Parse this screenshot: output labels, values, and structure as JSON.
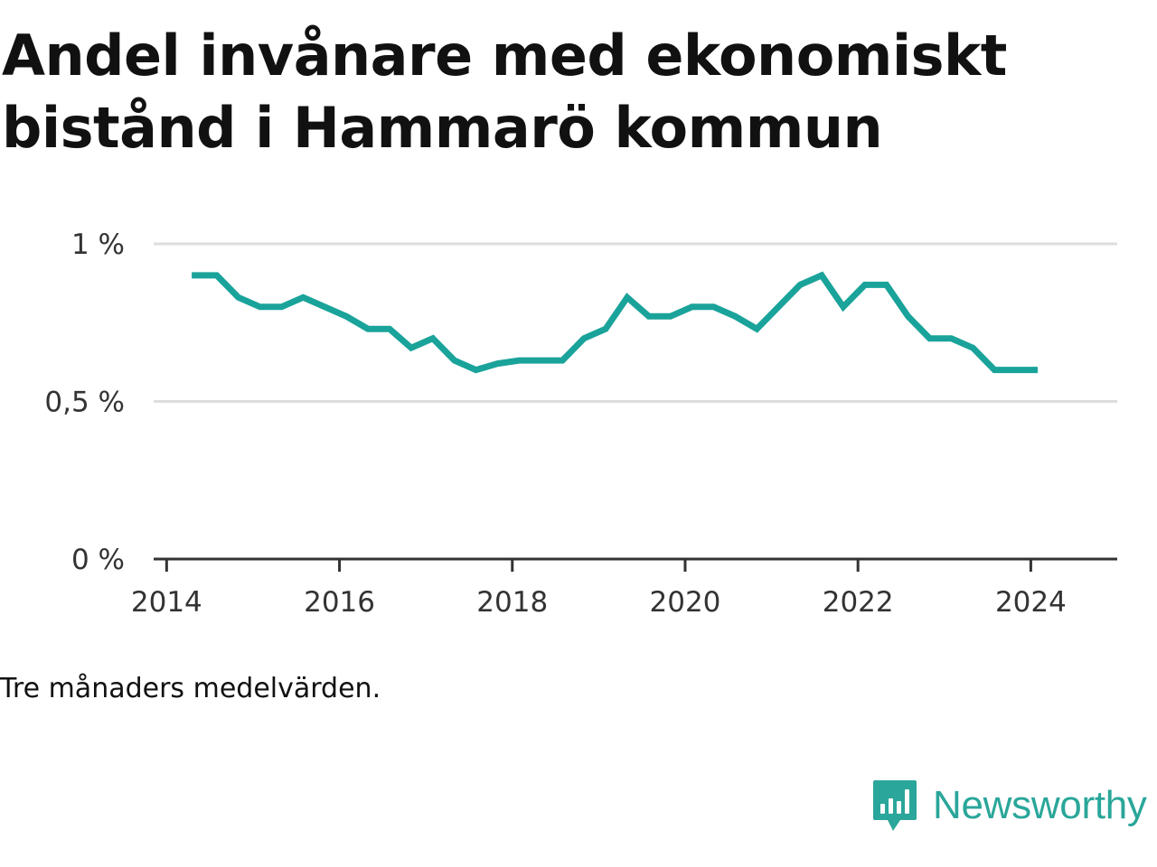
{
  "chart_data": {
    "type": "line",
    "title": "Andel invånare med ekonomiskt bistånd i Hammarö kommun",
    "xlabel": "",
    "ylabel": "",
    "note": "Tre månaders medelvärden.",
    "ylim": [
      0,
      1
    ],
    "xlim": [
      2013.85,
      2025.0
    ],
    "yticks": [
      {
        "value": 0,
        "label": "0 %"
      },
      {
        "value": 0.5,
        "label": "0,5 %"
      },
      {
        "value": 1,
        "label": "1 %"
      }
    ],
    "xticks": [
      {
        "value": 2014,
        "label": "2014"
      },
      {
        "value": 2016,
        "label": "2016"
      },
      {
        "value": 2018,
        "label": "2018"
      },
      {
        "value": 2020,
        "label": "2020"
      },
      {
        "value": 2022,
        "label": "2022"
      },
      {
        "value": 2024,
        "label": "2024"
      }
    ],
    "grid": true,
    "line_color": "#1aa39a",
    "series": [
      {
        "x": [
          2014.29,
          2014.58,
          2014.83,
          2015.08,
          2015.33,
          2015.58,
          2015.83,
          2016.08,
          2016.33,
          2016.58,
          2016.83,
          2017.08,
          2017.33,
          2017.58,
          2017.83,
          2018.08,
          2018.33,
          2018.58,
          2018.83,
          2019.08,
          2019.33,
          2019.58,
          2019.83,
          2020.08,
          2020.33,
          2020.58,
          2020.83,
          2021.08,
          2021.33,
          2021.58,
          2021.83,
          2022.08,
          2022.33,
          2022.58,
          2022.83,
          2023.08,
          2023.33,
          2023.58,
          2023.83,
          2024.08
        ],
        "y": [
          0.9,
          0.9,
          0.83,
          0.8,
          0.8,
          0.83,
          0.8,
          0.77,
          0.73,
          0.73,
          0.67,
          0.7,
          0.63,
          0.6,
          0.62,
          0.63,
          0.63,
          0.63,
          0.7,
          0.73,
          0.83,
          0.77,
          0.77,
          0.8,
          0.8,
          0.77,
          0.73,
          0.8,
          0.87,
          0.9,
          0.8,
          0.87,
          0.87,
          0.77,
          0.7,
          0.7,
          0.67,
          0.6,
          0.6,
          0.6
        ]
      }
    ]
  },
  "brand": {
    "name": "Newsworthy",
    "logo_icon": "bar-chart-speech-bubble-icon",
    "color": "#2aa69a"
  }
}
